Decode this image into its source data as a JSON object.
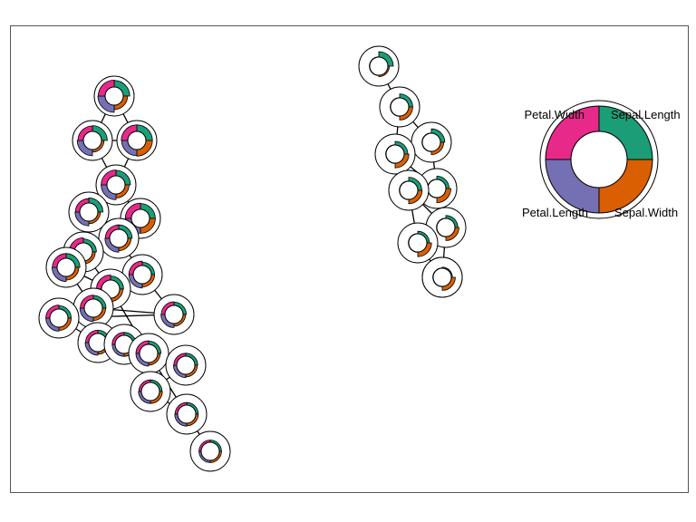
{
  "chart_data": {
    "type": "som-segment-map",
    "title": "",
    "xlabel": "",
    "ylabel": "",
    "legend_position": "right",
    "variables": [
      "Sepal.Length",
      "Sepal.Width",
      "Petal.Length",
      "Petal.Width"
    ],
    "colors": {
      "Sepal.Length": "#1b9e77",
      "Sepal.Width": "#d95f02",
      "Petal.Length": "#7570b3",
      "Petal.Width": "#e7298a"
    },
    "nodes": [
      {
        "id": 1,
        "v": [
          0.75,
          0.2,
          0.05,
          0.05
        ]
      },
      {
        "id": 2,
        "v": [
          0.55,
          0.55,
          0.05,
          0.05
        ]
      },
      {
        "id": 3,
        "v": [
          0.6,
          0.45,
          0.05,
          0.05
        ]
      },
      {
        "id": 4,
        "v": [
          0.5,
          0.65,
          0.05,
          0.05
        ]
      },
      {
        "id": 5,
        "v": [
          0.45,
          0.7,
          0.05,
          0.05
        ]
      },
      {
        "id": 6,
        "v": [
          0.55,
          0.6,
          0.05,
          0.05
        ]
      },
      {
        "id": 7,
        "v": [
          0.4,
          0.55,
          0.05,
          0.05
        ]
      },
      {
        "id": 8,
        "v": [
          0.35,
          0.65,
          0.05,
          0.05
        ]
      },
      {
        "id": 9,
        "v": [
          0.35,
          0.6,
          0.05,
          0.05
        ]
      },
      {
        "id": 10,
        "v": [
          0.15,
          0.55,
          0.05,
          0.05
        ]
      },
      {
        "id": 11,
        "v": [
          0.9,
          0.6,
          1.0,
          0.95
        ]
      },
      {
        "id": 12,
        "v": [
          0.8,
          0.35,
          0.85,
          0.75
        ]
      },
      {
        "id": 13,
        "v": [
          0.9,
          0.9,
          0.85,
          0.9
        ]
      },
      {
        "id": 14,
        "v": [
          0.75,
          0.55,
          0.8,
          0.8
        ]
      },
      {
        "id": 15,
        "v": [
          0.7,
          0.35,
          0.65,
          0.6
        ]
      },
      {
        "id": 16,
        "v": [
          0.8,
          0.8,
          0.8,
          0.85
        ]
      },
      {
        "id": 17,
        "v": [
          0.6,
          0.45,
          0.65,
          0.6
        ]
      },
      {
        "id": 18,
        "v": [
          0.55,
          0.4,
          0.7,
          0.7
        ]
      },
      {
        "id": 19,
        "v": [
          0.45,
          0.45,
          0.6,
          0.6
        ]
      },
      {
        "id": 20,
        "v": [
          0.65,
          0.5,
          0.7,
          0.65
        ]
      },
      {
        "id": 21,
        "v": [
          0.55,
          0.45,
          0.7,
          0.7
        ]
      },
      {
        "id": 22,
        "v": [
          0.5,
          0.45,
          0.6,
          0.55
        ]
      },
      {
        "id": 23,
        "v": [
          0.45,
          0.35,
          0.55,
          0.5
        ]
      },
      {
        "id": 24,
        "v": [
          0.45,
          0.45,
          0.55,
          0.55
        ]
      },
      {
        "id": 25,
        "v": [
          0.45,
          0.35,
          0.5,
          0.45
        ]
      },
      {
        "id": 26,
        "v": [
          0.4,
          0.4,
          0.4,
          0.4
        ]
      },
      {
        "id": 27,
        "v": [
          0.45,
          0.35,
          0.5,
          0.5
        ]
      },
      {
        "id": 28,
        "v": [
          0.4,
          0.35,
          0.45,
          0.4
        ]
      },
      {
        "id": 29,
        "v": [
          0.35,
          0.4,
          0.4,
          0.35
        ]
      },
      {
        "id": 30,
        "v": [
          0.35,
          0.35,
          0.4,
          0.35
        ]
      },
      {
        "id": 31,
        "v": [
          0.3,
          0.3,
          0.3,
          0.3
        ]
      },
      {
        "id": 32,
        "v": [
          0.25,
          0.3,
          0.25,
          0.2
        ]
      }
    ],
    "edges": [
      [
        11,
        12
      ],
      [
        11,
        13
      ],
      [
        12,
        13
      ],
      [
        12,
        14
      ],
      [
        13,
        14
      ],
      [
        14,
        15
      ],
      [
        14,
        16
      ],
      [
        15,
        17
      ],
      [
        16,
        17
      ],
      [
        15,
        18
      ],
      [
        17,
        18
      ],
      [
        17,
        19
      ],
      [
        18,
        21
      ],
      [
        17,
        20
      ],
      [
        19,
        21
      ],
      [
        20,
        21
      ],
      [
        20,
        22
      ],
      [
        21,
        22
      ],
      [
        19,
        23
      ],
      [
        22,
        23
      ],
      [
        23,
        24
      ],
      [
        22,
        25
      ],
      [
        24,
        25
      ],
      [
        25,
        26
      ],
      [
        21,
        27
      ],
      [
        26,
        27
      ],
      [
        26,
        28
      ],
      [
        28,
        29
      ],
      [
        27,
        30
      ],
      [
        29,
        30
      ],
      [
        30,
        31
      ],
      [
        31,
        32
      ],
      [
        1,
        2
      ],
      [
        2,
        3
      ],
      [
        2,
        4
      ],
      [
        3,
        5
      ],
      [
        4,
        5
      ],
      [
        4,
        6
      ],
      [
        5,
        7
      ],
      [
        6,
        7
      ],
      [
        6,
        8
      ],
      [
        7,
        9
      ],
      [
        8,
        9
      ],
      [
        9,
        10
      ]
    ],
    "legend": {
      "labels": [
        "Petal.Width",
        "Sepal.Length",
        "Petal.Length",
        "Sepal.Width"
      ],
      "values": [
        1.0,
        1.0,
        1.0,
        1.0
      ]
    }
  }
}
